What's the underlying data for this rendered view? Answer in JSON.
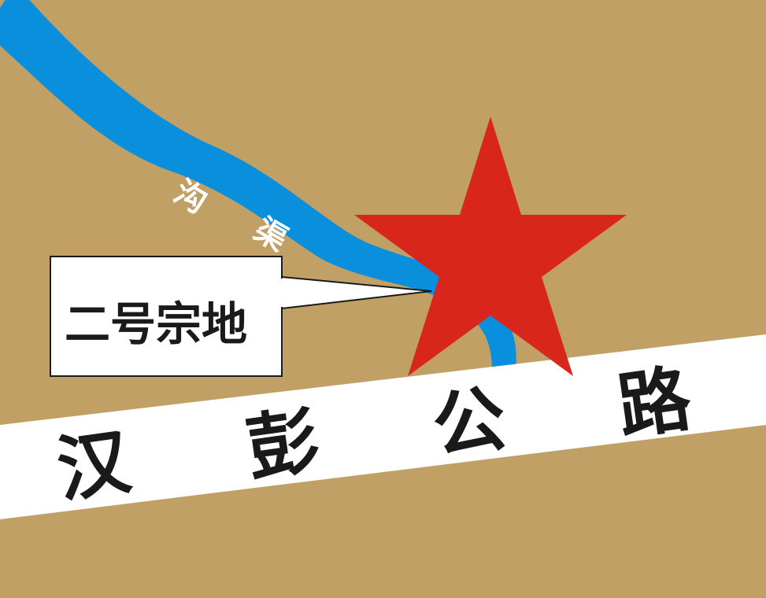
{
  "map": {
    "colors": {
      "land": "#c0a064",
      "canal": "#0a8fdc",
      "road": "#ffffff",
      "marker": "#d8261c",
      "text_dark": "#1a1a1a",
      "text_light": "#ffffff"
    },
    "canal": {
      "label_chars": [
        "沟",
        "渠"
      ]
    },
    "road": {
      "label_chars": [
        "汉",
        "彭",
        "公",
        "路"
      ]
    },
    "marker": {
      "icon": "red-star-icon"
    },
    "callout": {
      "label": "二号宗地"
    }
  }
}
